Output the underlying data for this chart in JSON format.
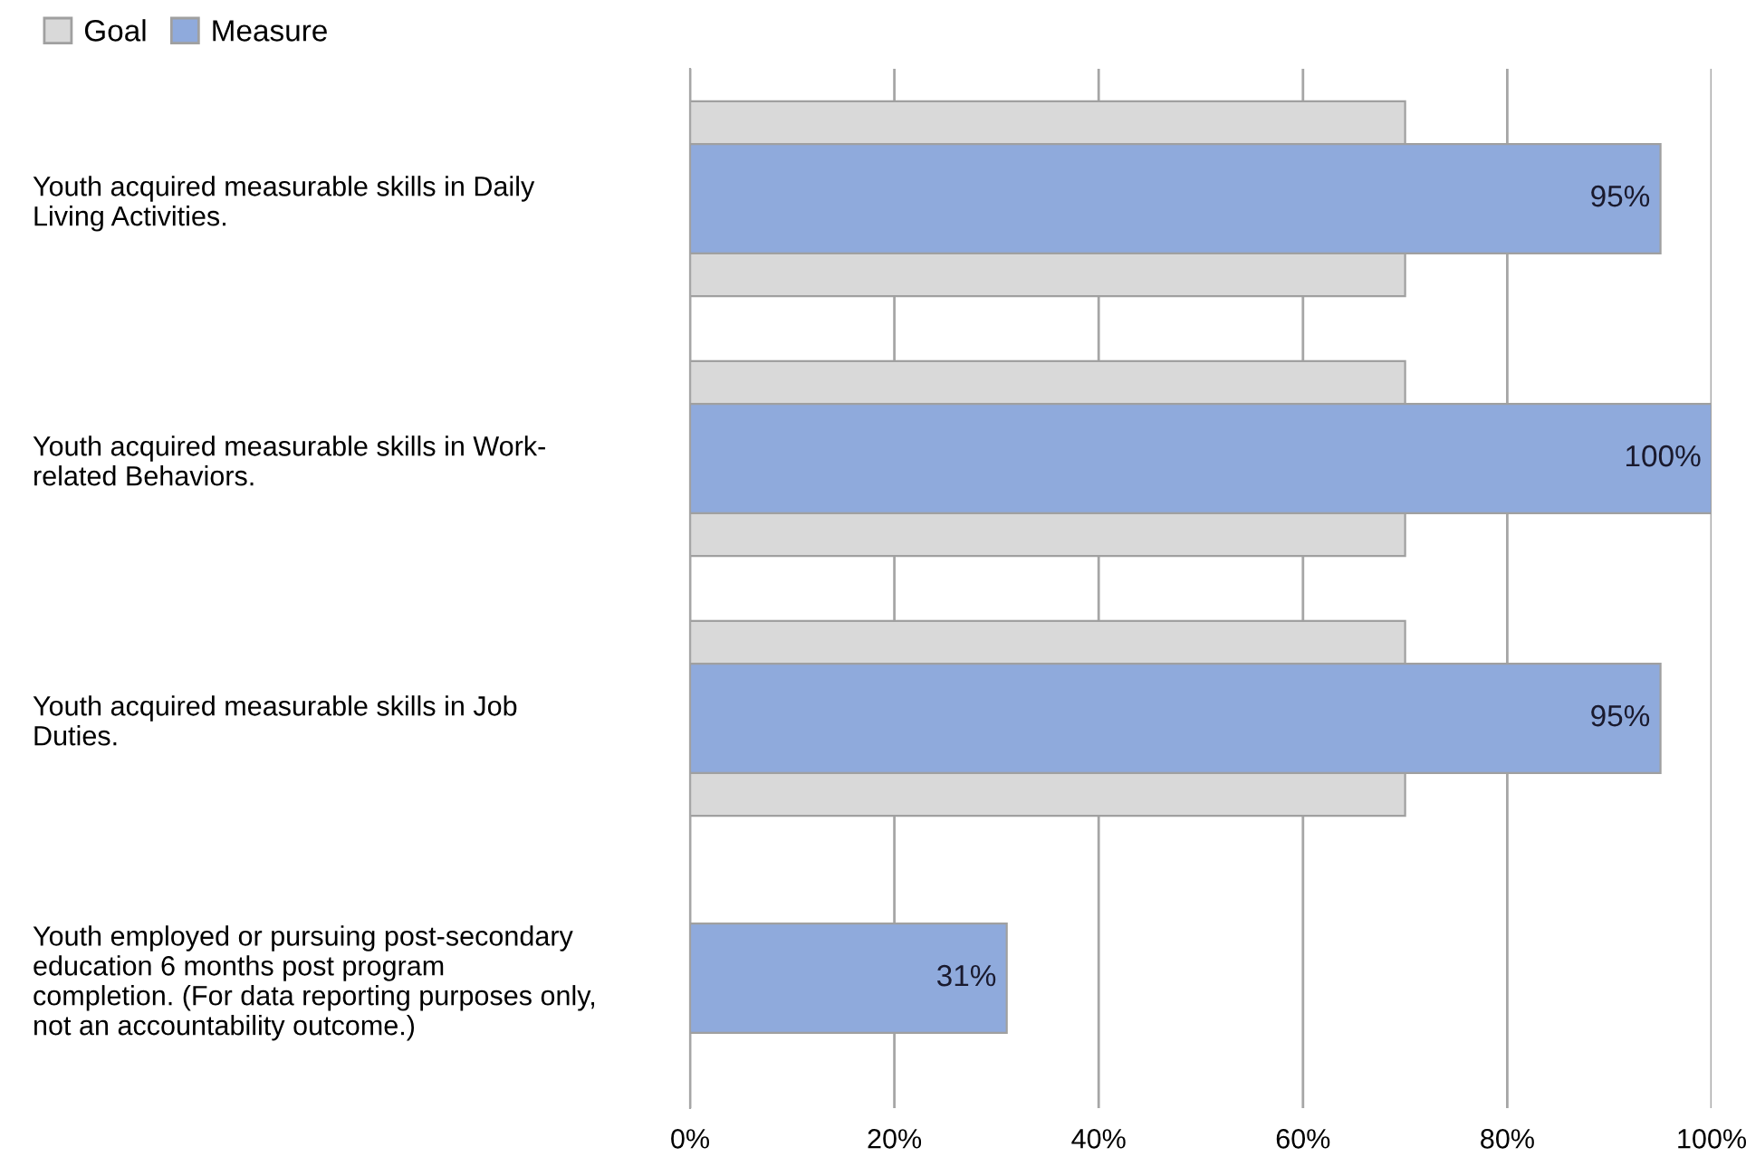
{
  "chart_data": {
    "type": "bar",
    "orientation": "horizontal",
    "categories": [
      "Youth acquired measurable skills in Daily\nLiving Activities.",
      "Youth acquired measurable skills in Work-\nrelated Behaviors.",
      "Youth acquired measurable skills in Job\nDuties.",
      "Youth employed or pursuing post-secondary\neducation 6 months post program\ncompletion. (For data reporting purposes only,\nnot an accountability outcome.)"
    ],
    "series": [
      {
        "name": "Goal",
        "color": "#d9d9d9",
        "values": [
          70,
          70,
          70,
          null
        ]
      },
      {
        "name": "Measure",
        "color": "#8faadc",
        "values": [
          95,
          100,
          95,
          31
        ],
        "value_labels": [
          "95%",
          "100%",
          "95%",
          "31%"
        ]
      }
    ],
    "xlim": [
      0,
      100
    ],
    "xticks": [
      {
        "value": 0,
        "label": "0%"
      },
      {
        "value": 20,
        "label": "20%"
      },
      {
        "value": 40,
        "label": "40%"
      },
      {
        "value": 60,
        "label": "60%"
      },
      {
        "value": 80,
        "label": "80%"
      },
      {
        "value": 100,
        "label": "100%"
      }
    ],
    "grid": "x",
    "legend": "top left"
  }
}
